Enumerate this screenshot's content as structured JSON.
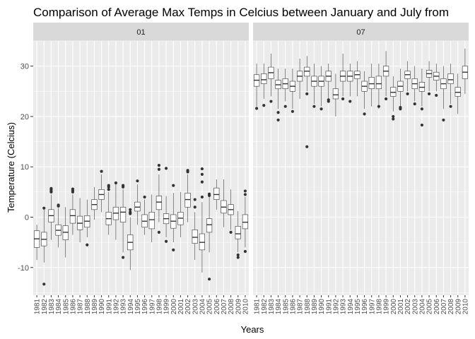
{
  "chart_data": {
    "type": "boxplot",
    "title": "Comparison of Average Max Temps in Celcius between January and July from",
    "xlabel": "Years",
    "ylabel": "Temperature (Celcius)",
    "ylim": [
      -15.5,
      35
    ],
    "yticks": [
      -10,
      0,
      10,
      20,
      30
    ],
    "categories": [
      "1981",
      "1982",
      "1983",
      "1984",
      "1985",
      "1986",
      "1987",
      "1988",
      "1989",
      "1990",
      "1991",
      "1992",
      "1993",
      "1994",
      "1995",
      "1996",
      "1997",
      "1998",
      "1999",
      "2000",
      "2001",
      "2002",
      "2003",
      "2004",
      "2005",
      "2006",
      "2007",
      "2008",
      "2009",
      "2010"
    ],
    "facets": [
      {
        "label": "01",
        "boxes": [
          {
            "q1": -6,
            "median": -4.3,
            "q3": -2.7,
            "lo": -8.5,
            "hi": -1.5,
            "outliers": []
          },
          {
            "q1": -5.7,
            "median": -4.4,
            "q3": -3,
            "lo": -9,
            "hi": 1.5,
            "outliers": [
              -13.3,
              1.8
            ]
          },
          {
            "q1": -1,
            "median": 0.3,
            "q3": 1.5,
            "lo": -4.5,
            "hi": 4.5,
            "outliers": [
              5,
              5.2,
              5.5,
              5.7
            ]
          },
          {
            "q1": -3.6,
            "median": -2.6,
            "q3": -1.5,
            "lo": -6,
            "hi": 1.8,
            "outliers": [
              2.2,
              2.4
            ]
          },
          {
            "q1": -4.5,
            "median": -3,
            "q3": -1.7,
            "lo": -8,
            "hi": 2
          },
          {
            "q1": -1.2,
            "median": 0.3,
            "q3": 1.5,
            "lo": -3.5,
            "hi": 4.5,
            "outliers": [
              5,
              5.3,
              5.6
            ]
          },
          {
            "q1": -2.5,
            "median": -1.2,
            "q3": 0.2,
            "lo": -5,
            "hi": 3.8,
            "outliers": []
          },
          {
            "q1": -2,
            "median": -0.8,
            "q3": 0.3,
            "lo": -4,
            "hi": 3.5,
            "outliers": [
              -5.5
            ]
          },
          {
            "q1": 1.5,
            "median": 2.5,
            "q3": 3.5,
            "lo": -0.5,
            "hi": 6,
            "outliers": []
          },
          {
            "q1": 3.5,
            "median": 4.5,
            "q3": 5.5,
            "lo": 1,
            "hi": 8.5,
            "outliers": [
              9.1
            ]
          },
          {
            "q1": -1.5,
            "median": -0.3,
            "q3": 1,
            "lo": -3.5,
            "hi": 5,
            "outliers": [
              5.5,
              6,
              6.3
            ]
          },
          {
            "q1": -0.5,
            "median": 0.8,
            "q3": 2,
            "lo": -4.5,
            "hi": 6.5,
            "outliers": [
              6.8
            ]
          },
          {
            "q1": -1,
            "median": 1,
            "q3": 2,
            "lo": -7,
            "hi": 5.5,
            "outliers": [
              -8,
              6,
              6.3
            ]
          },
          {
            "q1": -6.5,
            "median": -5,
            "q3": -3.5,
            "lo": -10.5,
            "hi": 0,
            "outliers": [
              0.7,
              1,
              1.5
            ]
          },
          {
            "q1": 1.2,
            "median": 2,
            "q3": 3,
            "lo": -1.5,
            "hi": 6.5,
            "outliers": [
              7.2
            ]
          },
          {
            "q1": -2,
            "median": -0.8,
            "q3": 0.5,
            "lo": -3.5,
            "hi": 3.5,
            "outliers": [
              4
            ]
          },
          {
            "q1": -2.3,
            "median": -0.5,
            "q3": 1,
            "lo": -5,
            "hi": 4.5,
            "outliers": []
          },
          {
            "q1": 1.5,
            "median": 3,
            "q3": 4.2,
            "lo": -1,
            "hi": 8.5,
            "outliers": [
              -3,
              9.5,
              10.3
            ]
          },
          {
            "q1": -1.3,
            "median": -0.3,
            "q3": 0.7,
            "lo": -4,
            "hi": 4.2,
            "outliers": [
              -4.8,
              9.7
            ]
          },
          {
            "q1": -2.2,
            "median": -0.8,
            "q3": 0.5,
            "lo": -5,
            "hi": 4.8,
            "outliers": [
              -6.5,
              6.3
            ]
          },
          {
            "q1": -1.5,
            "median": -0.2,
            "q3": 1,
            "lo": -4,
            "hi": 5,
            "outliers": []
          },
          {
            "q1": 2,
            "median": 3.5,
            "q3": 4.8,
            "lo": -1,
            "hi": 8.5,
            "outliers": [
              9,
              9.3
            ]
          },
          {
            "q1": -5.2,
            "median": -4,
            "q3": -2.5,
            "lo": -8.5,
            "hi": 1,
            "outliers": [
              2,
              3.5
            ]
          },
          {
            "q1": -6.5,
            "median": -5,
            "q3": -3.3,
            "lo": -11,
            "hi": 3,
            "outliers": [
              4,
              7,
              8.5,
              9.6
            ]
          },
          {
            "q1": -3,
            "median": -1.5,
            "q3": -0.3,
            "lo": -7,
            "hi": 4,
            "outliers": [
              -12.3,
              4.3,
              4.6
            ]
          },
          {
            "q1": 3.5,
            "median": 4.5,
            "q3": 5.8,
            "lo": 1.5,
            "hi": 7.5,
            "outliers": []
          },
          {
            "q1": 0.8,
            "median": 2,
            "q3": 3.3,
            "lo": -2,
            "hi": 7.5,
            "outliers": []
          },
          {
            "q1": 0.5,
            "median": 1.5,
            "q3": 2.5,
            "lo": -2.5,
            "hi": 5.5,
            "outliers": [
              -3
            ]
          },
          {
            "q1": -4.3,
            "median": -3.3,
            "q3": -1.8,
            "lo": -7,
            "hi": 1.2,
            "outliers": [
              -7.5,
              -8
            ]
          },
          {
            "q1": -2.3,
            "median": -1,
            "q3": 0.5,
            "lo": -6,
            "hi": 4,
            "outliers": [
              -6.8,
              4.5,
              5.2
            ]
          }
        ]
      },
      {
        "label": "07",
        "boxes": [
          {
            "q1": 26,
            "median": 27.2,
            "q3": 28.3,
            "lo": 22,
            "hi": 30.5,
            "outliers": [
              21.6
            ]
          },
          {
            "q1": 26.5,
            "median": 27.3,
            "q3": 28.5,
            "lo": 23.5,
            "hi": 30.5,
            "outliers": [
              22.2
            ]
          },
          {
            "q1": 27.5,
            "median": 28.7,
            "q3": 29.8,
            "lo": 24,
            "hi": 32.5,
            "outliers": [
              23
            ]
          },
          {
            "q1": 25.5,
            "median": 26.3,
            "q3": 27.2,
            "lo": 21.5,
            "hi": 29.5,
            "outliers": [
              20.8,
              19.3
            ]
          },
          {
            "q1": 25.5,
            "median": 26.5,
            "q3": 27.5,
            "lo": 23,
            "hi": 29.5,
            "outliers": [
              22
            ]
          },
          {
            "q1": 25,
            "median": 26,
            "q3": 27,
            "lo": 21.5,
            "hi": 29.5,
            "outliers": [
              21
            ]
          },
          {
            "q1": 27,
            "median": 28,
            "q3": 29,
            "lo": 23.5,
            "hi": 31.5,
            "outliers": []
          },
          {
            "q1": 28,
            "median": 29,
            "q3": 29.8,
            "lo": 25,
            "hi": 32,
            "outliers": [
              24.5,
              14
            ]
          },
          {
            "q1": 26,
            "median": 27,
            "q3": 28,
            "lo": 22.5,
            "hi": 30.5,
            "outliers": [
              22
            ]
          },
          {
            "q1": 26,
            "median": 27,
            "q3": 28,
            "lo": 22,
            "hi": 30,
            "outliers": [
              21.5
            ]
          },
          {
            "q1": 27,
            "median": 28,
            "q3": 29,
            "lo": 23.5,
            "hi": 30.5,
            "outliers": [
              23,
              23.3
            ]
          },
          {
            "q1": 23.5,
            "median": 24.3,
            "q3": 25.5,
            "lo": 20,
            "hi": 28.5,
            "outliers": []
          },
          {
            "q1": 27,
            "median": 28,
            "q3": 29,
            "lo": 24,
            "hi": 32.5,
            "outliers": [
              23.5
            ]
          },
          {
            "q1": 27,
            "median": 28,
            "q3": 29,
            "lo": 24,
            "hi": 30.5,
            "outliers": [
              23
            ]
          },
          {
            "q1": 27.5,
            "median": 28.3,
            "q3": 29,
            "lo": 24,
            "hi": 31,
            "outliers": []
          },
          {
            "q1": 25,
            "median": 26,
            "q3": 27,
            "lo": 21.5,
            "hi": 29,
            "outliers": [
              20.5
            ]
          },
          {
            "q1": 25.5,
            "median": 26.5,
            "q3": 27.8,
            "lo": 22,
            "hi": 30.5,
            "outliers": []
          },
          {
            "q1": 25.5,
            "median": 26.5,
            "q3": 28,
            "lo": 21.5,
            "hi": 30.5,
            "outliers": [
              22
            ]
          },
          {
            "q1": 28,
            "median": 29,
            "q3": 30,
            "lo": 24,
            "hi": 33,
            "outliers": [
              23.5
            ]
          },
          {
            "q1": 24,
            "median": 24.8,
            "q3": 25.8,
            "lo": 21,
            "hi": 28,
            "outliers": [
              20,
              19.5
            ]
          },
          {
            "q1": 25,
            "median": 26,
            "q3": 27,
            "lo": 22,
            "hi": 29.5,
            "outliers": [
              21.5,
              21.8
            ]
          },
          {
            "q1": 27.5,
            "median": 28.3,
            "q3": 29,
            "lo": 25,
            "hi": 31,
            "outliers": [
              24.5
            ]
          },
          {
            "q1": 25.5,
            "median": 26.5,
            "q3": 27.5,
            "lo": 23,
            "hi": 30,
            "outliers": [
              22.5
            ]
          },
          {
            "q1": 25,
            "median": 25.8,
            "q3": 26.8,
            "lo": 22,
            "hi": 29.5,
            "outliers": [
              21.5,
              18.3
            ]
          },
          {
            "q1": 27.8,
            "median": 28.5,
            "q3": 29.2,
            "lo": 25,
            "hi": 31,
            "outliers": [
              24.5
            ]
          },
          {
            "q1": 27.2,
            "median": 28,
            "q3": 28.8,
            "lo": 25,
            "hi": 30.5,
            "outliers": [
              24.2
            ]
          },
          {
            "q1": 25.5,
            "median": 26.5,
            "q3": 27.5,
            "lo": 21.5,
            "hi": 30,
            "outliers": [
              19.3
            ]
          },
          {
            "q1": 26.5,
            "median": 27.3,
            "q3": 28.5,
            "lo": 22.5,
            "hi": 30.5,
            "outliers": [
              22
            ]
          },
          {
            "q1": 24,
            "median": 24.8,
            "q3": 25.8,
            "lo": 20.5,
            "hi": 28.5,
            "outliers": []
          },
          {
            "q1": 27.5,
            "median": 28.8,
            "q3": 30,
            "lo": 24.5,
            "hi": 33.5,
            "outliers": []
          }
        ]
      }
    ],
    "colors": {
      "panel_bg": "#ebebeb",
      "strip_bg": "#d9d9d9",
      "gridline": "#ffffff",
      "box_fill": "#ffffff",
      "box_line": "#333333",
      "outlier": "#333333",
      "tick_text": "#4d4d4d",
      "text": "#000000"
    }
  }
}
